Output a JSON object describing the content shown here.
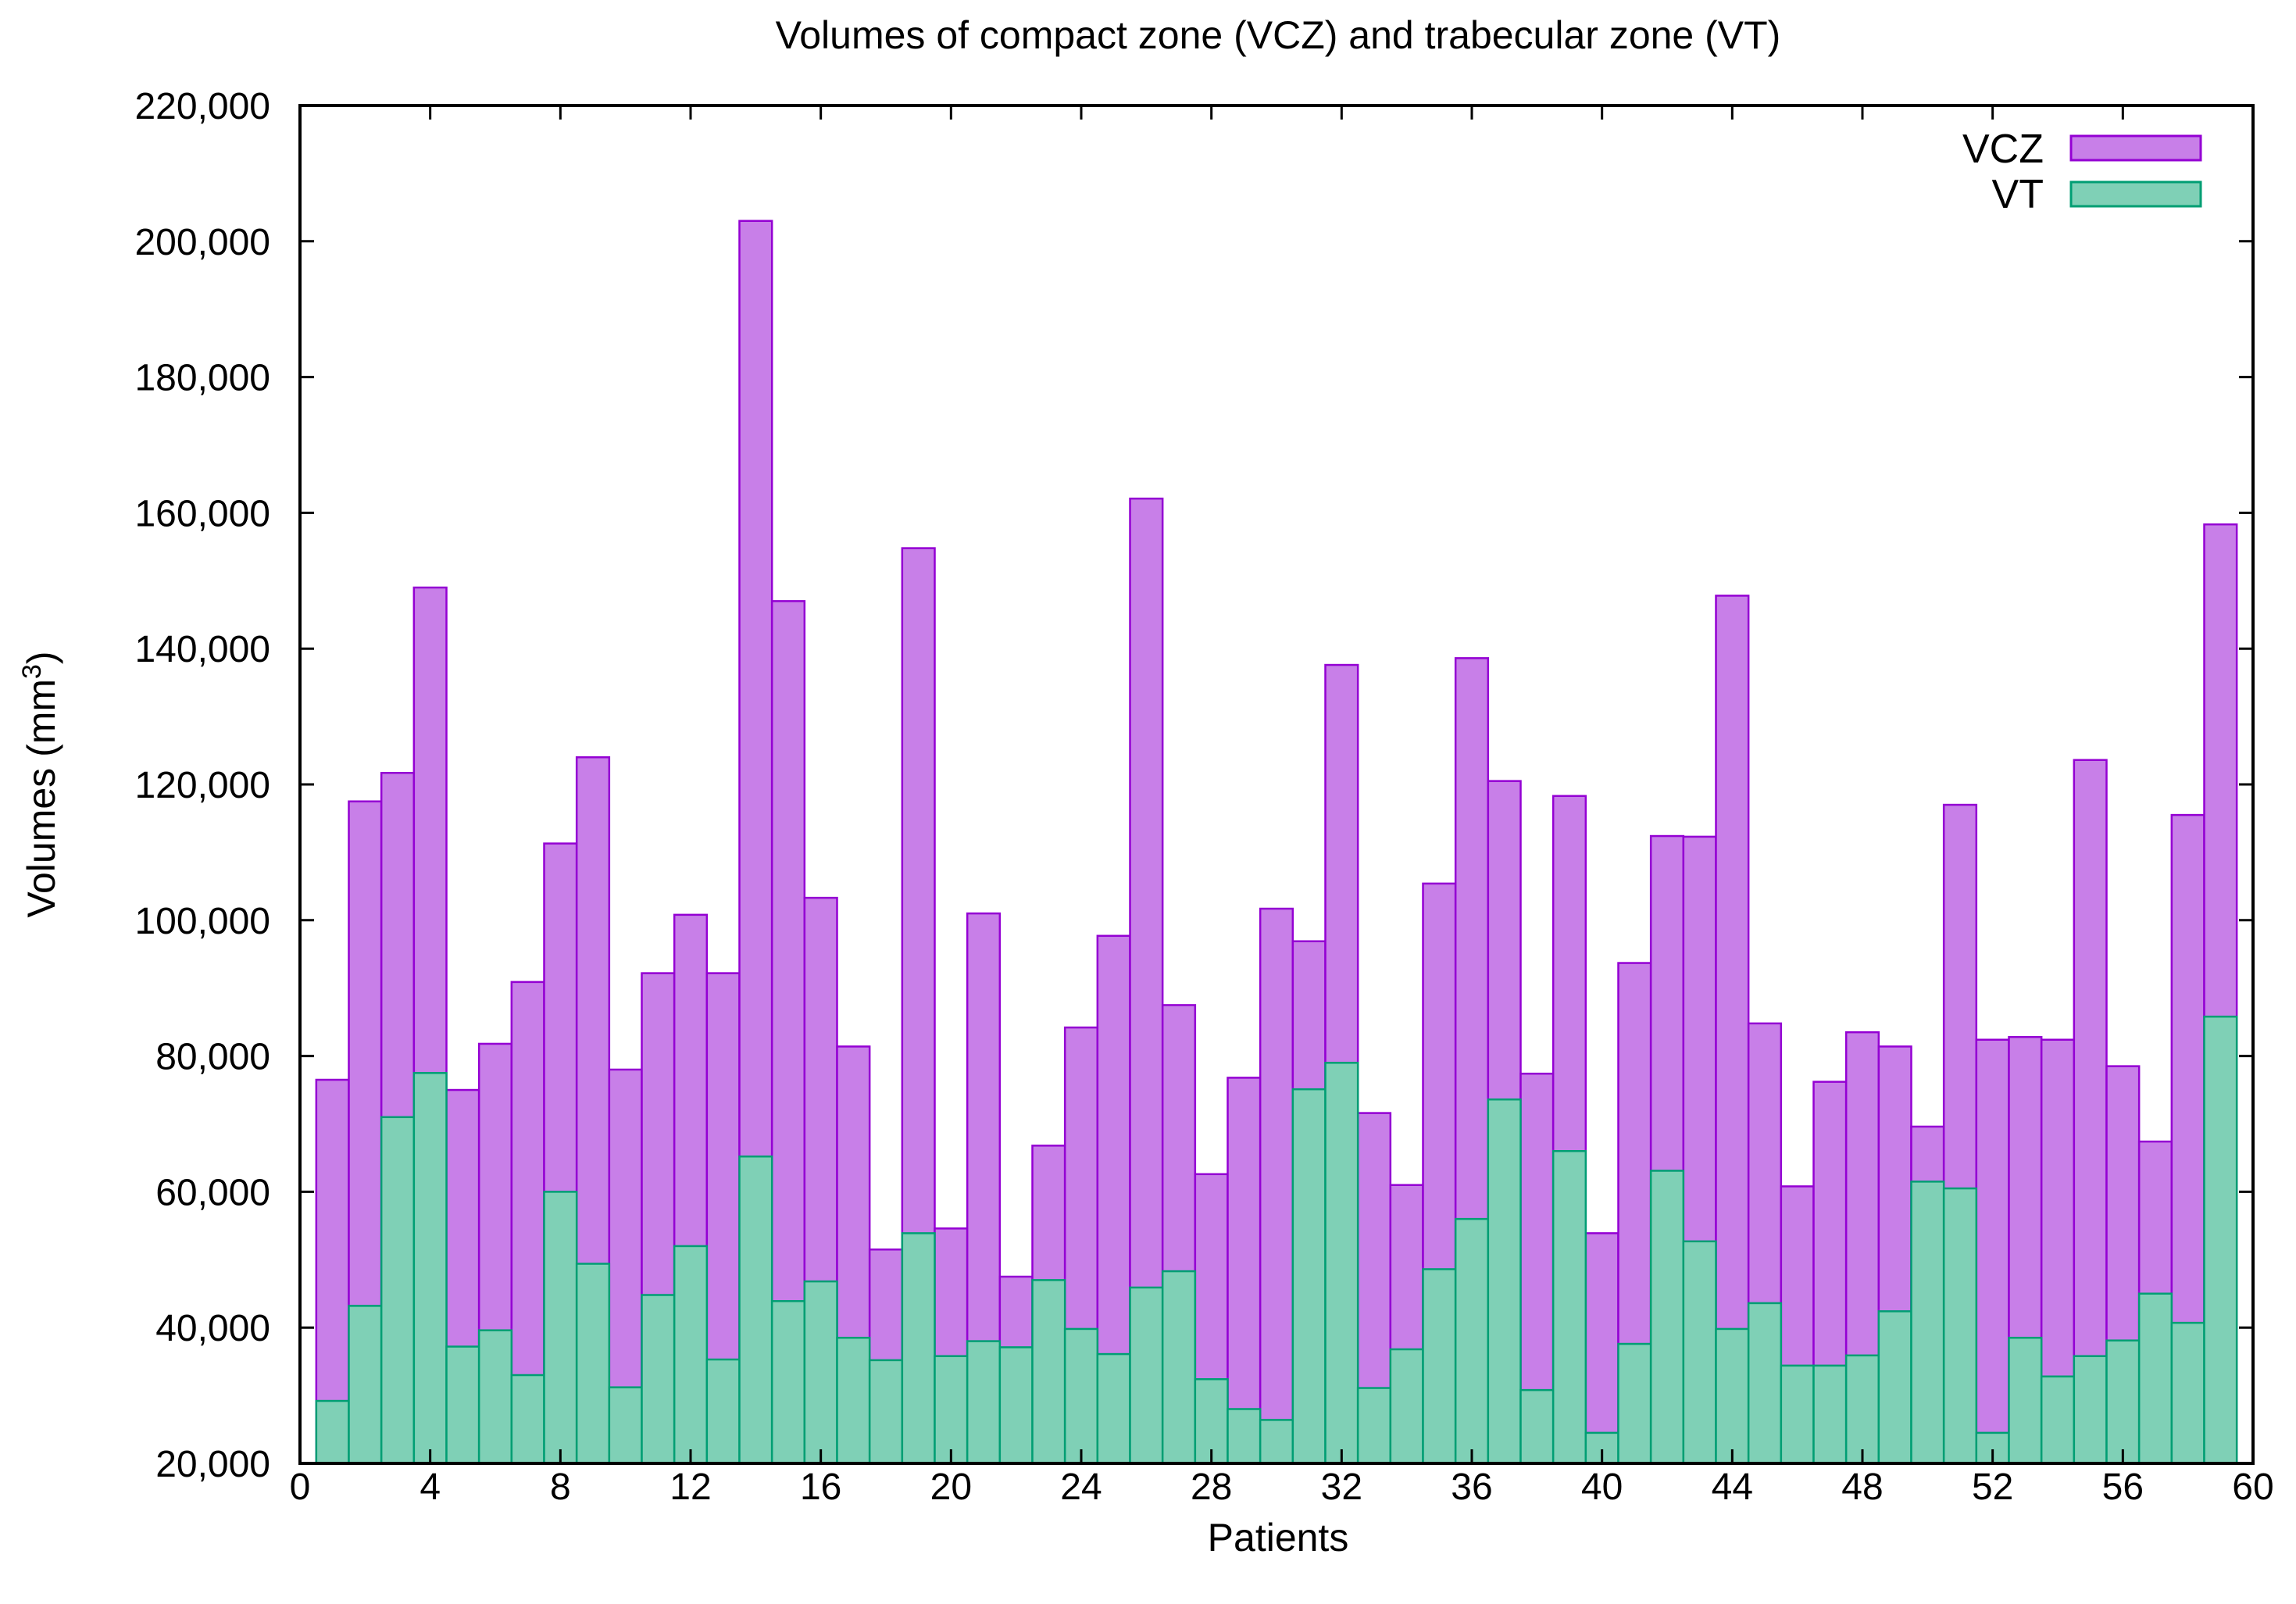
{
  "chart_data": {
    "type": "bar",
    "title": "Volumes of compact zone (VCZ) and trabecular zone (VT)",
    "xlabel": "Patients",
    "ylabel": "Volumes (mm",
    "ylabel_sup": "3",
    "ylabel_close": ")",
    "xlim": [
      0,
      60
    ],
    "ylim": [
      20000,
      220000
    ],
    "x_ticks": [
      0,
      4,
      8,
      12,
      16,
      20,
      24,
      28,
      32,
      36,
      40,
      44,
      48,
      52,
      56,
      60
    ],
    "x_tick_labels": [
      "0",
      "4",
      "8",
      "12",
      "16",
      "20",
      "24",
      "28",
      "32",
      "36",
      "40",
      "44",
      "48",
      "52",
      "56",
      "60"
    ],
    "y_ticks": [
      20000,
      40000,
      60000,
      80000,
      100000,
      120000,
      140000,
      160000,
      180000,
      200000,
      220000
    ],
    "y_tick_labels": [
      "20,000",
      "40,000",
      "60,000",
      "80,000",
      "100,000",
      "120,000",
      "140,000",
      "160,000",
      "180,000",
      "200,000",
      "220,000"
    ],
    "legend_position": "top-right",
    "grid": false,
    "x": [
      1,
      2,
      3,
      4,
      5,
      6,
      7,
      8,
      9,
      10,
      11,
      12,
      13,
      14,
      15,
      16,
      17,
      18,
      19,
      20,
      21,
      22,
      23,
      24,
      25,
      26,
      27,
      28,
      29,
      30,
      31,
      32,
      33,
      34,
      35,
      36,
      37,
      38,
      39,
      40,
      41,
      42,
      43,
      44,
      45,
      46,
      47,
      48,
      49,
      50,
      51,
      52,
      53,
      54,
      55,
      56,
      57,
      58,
      59
    ],
    "series": [
      {
        "name": "VCZ",
        "fill": "#c87fe8",
        "stroke": "#9400d3",
        "values": [
          76500,
          117500,
          121700,
          149000,
          75000,
          81800,
          90900,
          111300,
          124000,
          78000,
          92200,
          100800,
          92200,
          203000,
          147000,
          103300,
          81400,
          51500,
          154800,
          54600,
          101000,
          47500,
          66800,
          84200,
          97700,
          162100,
          87500,
          62600,
          76800,
          101700,
          96900,
          137600,
          71600,
          61000,
          105400,
          138600,
          120500,
          77400,
          118300,
          53900,
          93700,
          112400,
          112300,
          147800,
          84800,
          60800,
          76200,
          83500,
          81400,
          69600,
          117000,
          82400,
          82800,
          82400,
          123600,
          78500,
          67400,
          115500,
          158300
        ]
      },
      {
        "name": "VT",
        "fill": "#7fd0b6",
        "stroke": "#009e73",
        "values": [
          29200,
          43200,
          71000,
          77500,
          37200,
          39600,
          33000,
          60000,
          49400,
          31200,
          44800,
          52000,
          35300,
          65200,
          43900,
          46800,
          38500,
          35200,
          53900,
          35800,
          38000,
          37100,
          47000,
          39800,
          36100,
          45900,
          48300,
          32400,
          28000,
          26400,
          75100,
          79000,
          31100,
          36800,
          48600,
          56000,
          73600,
          30800,
          66000,
          24500,
          37600,
          63100,
          52700,
          39800,
          43600,
          34400,
          34400,
          35900,
          42400,
          61500,
          60500,
          24500,
          38500,
          32800,
          35800,
          38100,
          45000,
          40700,
          85800
        ]
      }
    ]
  }
}
